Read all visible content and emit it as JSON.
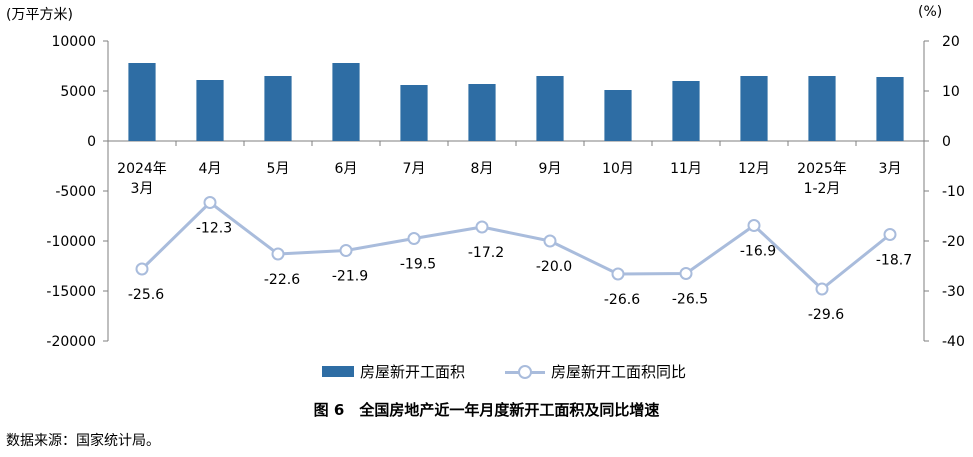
{
  "chart_data": {
    "type": "bar+line",
    "categories": [
      "2024年\n3月",
      "4月",
      "5月",
      "6月",
      "7月",
      "8月",
      "9月",
      "10月",
      "11月",
      "12月",
      "2025年\n1-2月",
      "3月"
    ],
    "series": [
      {
        "name": "房屋新开工面积",
        "type": "bar",
        "axis": "left",
        "values": [
          7800,
          6100,
          6500,
          7800,
          5600,
          5700,
          6500,
          5100,
          6000,
          6500,
          6500,
          6400
        ]
      },
      {
        "name": "房屋新开工面积同比",
        "type": "line",
        "axis": "right",
        "values": [
          -25.6,
          -12.3,
          -22.6,
          -21.9,
          -19.5,
          -17.2,
          -20.0,
          -26.6,
          -26.5,
          -16.9,
          -29.6,
          -18.7
        ],
        "labels": [
          "-25.6",
          "-12.3",
          "-22.6",
          "-21.9",
          "-19.5",
          "-17.2",
          "-20.0",
          "-26.6",
          "-26.5",
          "-16.9",
          "-29.6",
          "-18.7"
        ]
      }
    ],
    "y_left": {
      "unit": "(万平方米)",
      "ylim": [
        -20000,
        10000
      ],
      "ticks": [
        10000,
        5000,
        0,
        -5000,
        -10000,
        -15000,
        -20000
      ],
      "tick_labels": [
        "10000",
        "5000",
        "0",
        "-5000",
        "-10000",
        "-15000",
        "-20000"
      ]
    },
    "y_right": {
      "unit": "(%)",
      "ylim": [
        -40,
        20
      ],
      "ticks": [
        20,
        10,
        0,
        -10,
        -20,
        -30,
        -40
      ],
      "tick_labels": [
        "20",
        "10",
        "0",
        "-10",
        "-20",
        "-30",
        "-40"
      ]
    },
    "colors": {
      "bar": "#2e6da4",
      "line": "#a9bcdc",
      "axis": "#7f7f7f"
    },
    "grid": false,
    "legend_position": "bottom"
  },
  "legend": {
    "bar_label": "房屋新开工面积",
    "line_label": "房屋新开工面积同比"
  },
  "caption": "图 6　全国房地产近一年月度新开工面积及同比增速",
  "source": "数据来源：国家统计局。"
}
